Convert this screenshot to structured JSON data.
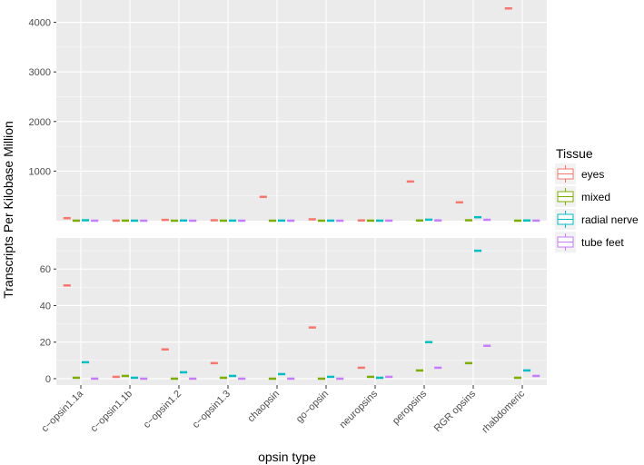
{
  "chart_data": {
    "type": "boxplot",
    "xlabel": "opsin type",
    "ylabel": "Transcripts Per Kilobase Million",
    "categories": [
      "c−opsin1.1a",
      "c−opsin1.1b",
      "c−opsin1.2",
      "c−opsin1.3",
      "chaopsin",
      "go−opsin",
      "neuropsins",
      "peropsins",
      "RGR opsins",
      "rhabdomeric"
    ],
    "legend": {
      "title": "Tissue",
      "placement": "right",
      "entries": [
        "eyes",
        "mixed",
        "radial nerve",
        "tube feet"
      ]
    },
    "panels": [
      {
        "name": "upper",
        "ylim": [
          0,
          4450
        ],
        "yticks": [
          1000,
          2000,
          3000,
          4000
        ],
        "grid": true
      },
      {
        "name": "lower",
        "ylim": [
          -3.5,
          77
        ],
        "yticks": [
          0,
          20,
          40,
          60
        ],
        "grid": true
      }
    ],
    "series": [
      {
        "name": "eyes",
        "color": "#F8766D",
        "values": [
          51,
          1,
          16,
          8.5,
          480,
          28,
          6,
          790,
          370,
          4280
        ]
      },
      {
        "name": "mixed",
        "color": "#7CAE00",
        "values": [
          0.5,
          1.5,
          0,
          0.5,
          0,
          0,
          1,
          4.5,
          8.5,
          0.5
        ]
      },
      {
        "name": "radial nerve",
        "color": "#00BFC4",
        "values": [
          9,
          0.5,
          3.5,
          1.5,
          2.5,
          1,
          0.5,
          20,
          70,
          4.5
        ]
      },
      {
        "name": "tube feet",
        "color": "#C77CFF",
        "values": [
          0,
          0,
          0,
          0,
          0,
          0,
          1,
          6,
          18,
          1.5
        ]
      }
    ]
  }
}
